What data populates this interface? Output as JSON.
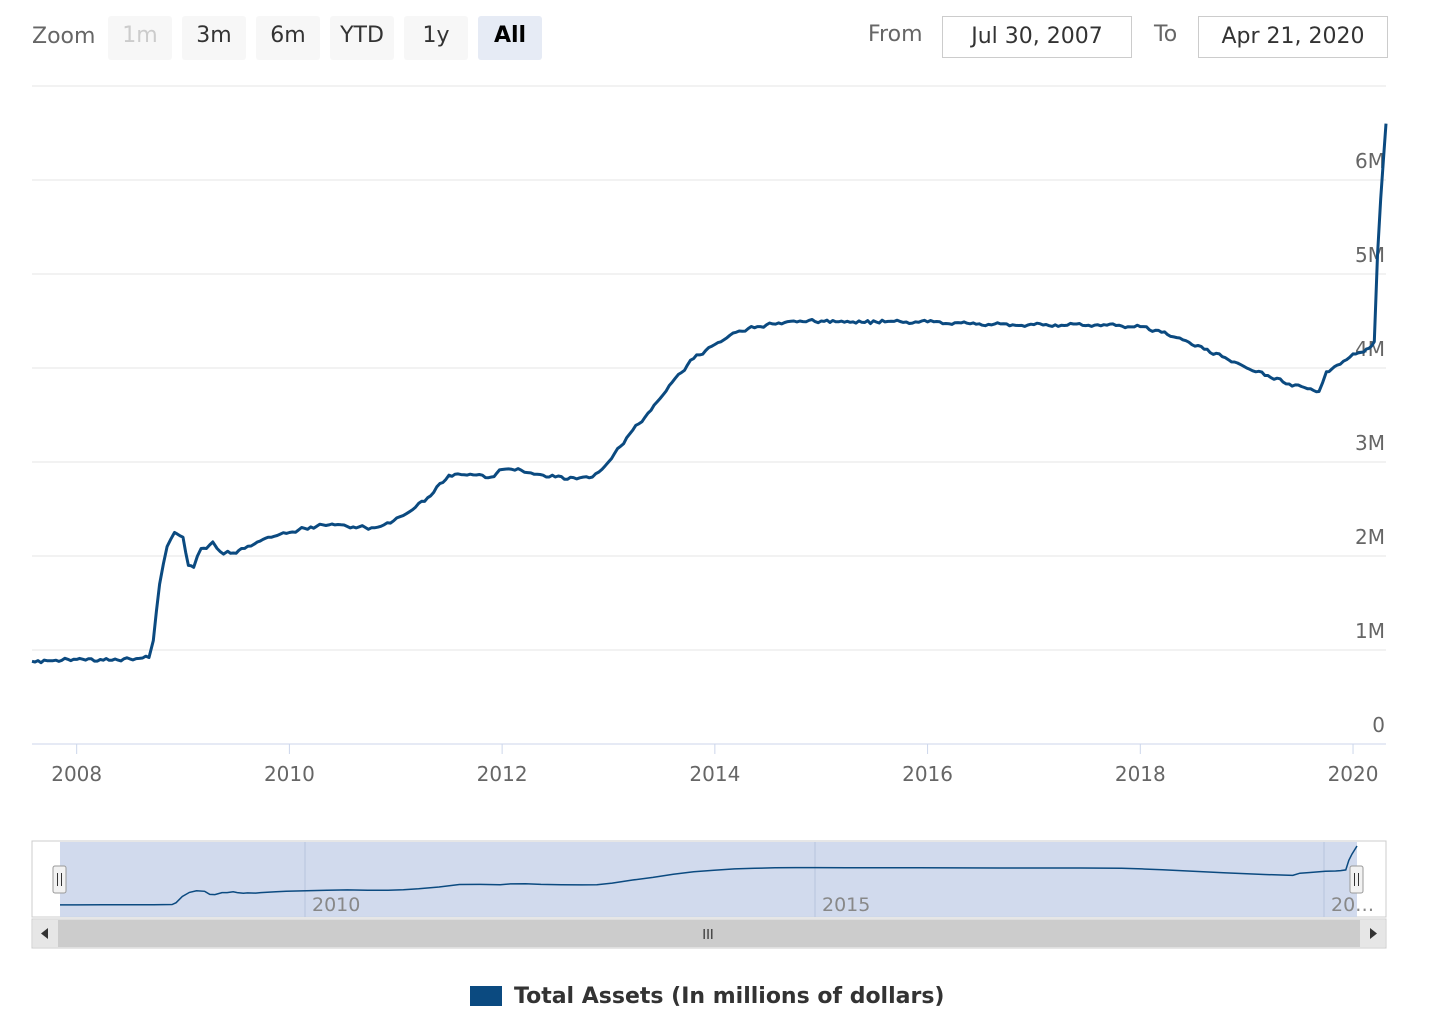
{
  "range_selector": {
    "zoom_label": "Zoom",
    "buttons": [
      {
        "label": "1m",
        "state": "disabled"
      },
      {
        "label": "3m",
        "state": "normal"
      },
      {
        "label": "6m",
        "state": "normal"
      },
      {
        "label": "YTD",
        "state": "normal"
      },
      {
        "label": "1y",
        "state": "normal"
      },
      {
        "label": "All",
        "state": "selected"
      }
    ],
    "from_label": "From",
    "from_value": "Jul 30, 2007",
    "to_label": "To",
    "to_value": "Apr 21, 2020"
  },
  "navigator": {
    "axis_labels": [
      "2010",
      "2015",
      "20…"
    ],
    "scrollbar_grip": "III"
  },
  "colors": {
    "series": "#0b4a80",
    "navigator_fill": "#ccd6eb",
    "grid": "#e6e6e6"
  },
  "chart_data": {
    "type": "line",
    "title": "",
    "xlabel": "",
    "ylabel": "",
    "x_unit": "year",
    "xlim": [
      2007.58,
      2020.31
    ],
    "ylim": [
      0,
      7000000
    ],
    "x_tick_labels": [
      "2008",
      "2010",
      "2012",
      "2014",
      "2016",
      "2018",
      "2020"
    ],
    "x_ticks": [
      2008,
      2010,
      2012,
      2014,
      2016,
      2018,
      2020
    ],
    "y_tick_labels": [
      "0",
      "1M",
      "2M",
      "3M",
      "4M",
      "5M",
      "6M"
    ],
    "y_ticks": [
      0,
      1000000,
      2000000,
      3000000,
      4000000,
      5000000,
      6000000
    ],
    "grid": true,
    "legend_position": "bottom-center",
    "series": [
      {
        "name": "Total Assets (In millions of dollars)",
        "x": [
          2007.58,
          2007.75,
          2008.0,
          2008.25,
          2008.5,
          2008.68,
          2008.72,
          2008.78,
          2008.85,
          2008.92,
          2009.0,
          2009.05,
          2009.1,
          2009.17,
          2009.22,
          2009.28,
          2009.32,
          2009.38,
          2009.42,
          2009.5,
          2009.55,
          2009.7,
          2009.8,
          2010.0,
          2010.2,
          2010.4,
          2010.6,
          2010.8,
          2010.95,
          2011.1,
          2011.3,
          2011.5,
          2011.7,
          2011.9,
          2012.0,
          2012.15,
          2012.3,
          2012.5,
          2012.7,
          2012.85,
          2013.0,
          2013.2,
          2013.4,
          2013.6,
          2013.8,
          2014.0,
          2014.2,
          2014.4,
          2014.6,
          2014.8,
          2015.0,
          2015.3,
          2015.6,
          2016.0,
          2016.4,
          2016.8,
          2017.2,
          2017.6,
          2018.0,
          2018.2,
          2018.4,
          2018.6,
          2018.8,
          2019.0,
          2019.2,
          2019.4,
          2019.6,
          2019.68,
          2019.75,
          2019.85,
          2020.0,
          2020.1,
          2020.15,
          2020.2,
          2020.23,
          2020.26,
          2020.31
        ],
        "y": [
          880000,
          885000,
          900000,
          892000,
          905000,
          920000,
          1100000,
          1700000,
          2100000,
          2250000,
          2200000,
          1900000,
          1880000,
          2080000,
          2080000,
          2150000,
          2080000,
          2020000,
          2050000,
          2030000,
          2080000,
          2150000,
          2200000,
          2250000,
          2310000,
          2340000,
          2310000,
          2300000,
          2350000,
          2450000,
          2620000,
          2860000,
          2870000,
          2840000,
          2920000,
          2930000,
          2870000,
          2840000,
          2820000,
          2840000,
          3000000,
          3300000,
          3550000,
          3850000,
          4100000,
          4250000,
          4380000,
          4440000,
          4480000,
          4500000,
          4500000,
          4490000,
          4490000,
          4490000,
          4470000,
          4460000,
          4460000,
          4460000,
          4440000,
          4380000,
          4300000,
          4200000,
          4110000,
          4000000,
          3920000,
          3830000,
          3780000,
          3750000,
          3960000,
          4030000,
          4150000,
          4170000,
          4210000,
          4280000,
          5200000,
          5800000,
          6600000
        ]
      }
    ]
  }
}
